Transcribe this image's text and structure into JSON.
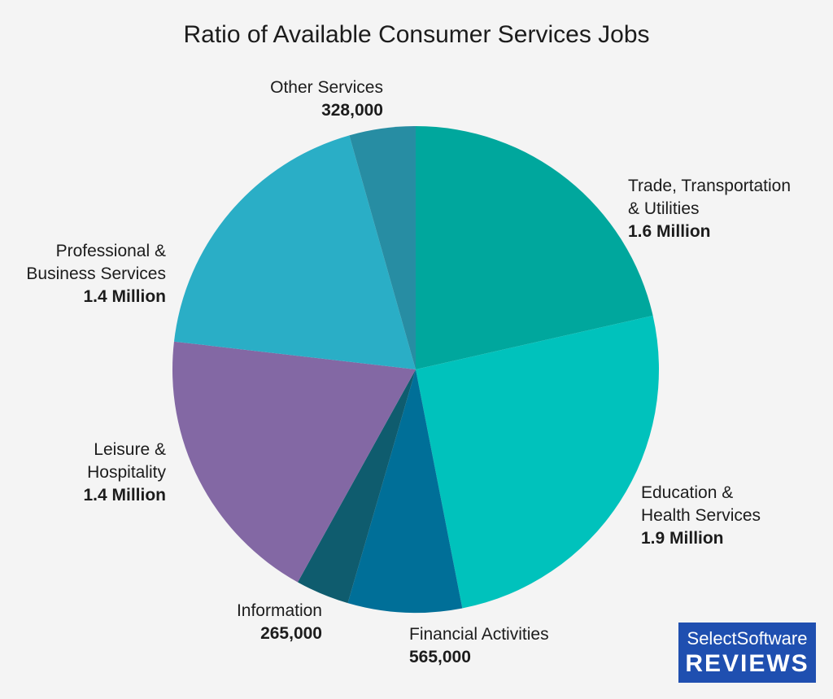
{
  "chart_data": {
    "type": "pie",
    "title": "Ratio of Available Consumer Services Jobs",
    "slices": [
      {
        "name": "Trade, Transportation\n& Utilities",
        "value": 1600000,
        "label": "1.6 Million",
        "color": "#00a79d"
      },
      {
        "name": "Education &\nHealth Services",
        "value": 1900000,
        "label": "1.9 Million",
        "color": "#00c2bc"
      },
      {
        "name": "Financial Activities",
        "value": 565000,
        "label": "565,000",
        "color": "#006f98"
      },
      {
        "name": "Information",
        "value": 265000,
        "label": "265,000",
        "color": "#0f5c6e"
      },
      {
        "name": "Leisure &\nHospitality",
        "value": 1400000,
        "label": "1.4 Million",
        "color": "#8368a4"
      },
      {
        "name": "Professional &\nBusiness Services",
        "value": 1400000,
        "label": "1.4 Million",
        "color": "#2aaec6"
      },
      {
        "name": "Other Services",
        "value": 328000,
        "label": "328,000",
        "color": "#278da3"
      }
    ]
  },
  "brand": {
    "line1": "SelectSoftware",
    "line2": "REVIEWS",
    "color": "#1f4fb0"
  }
}
